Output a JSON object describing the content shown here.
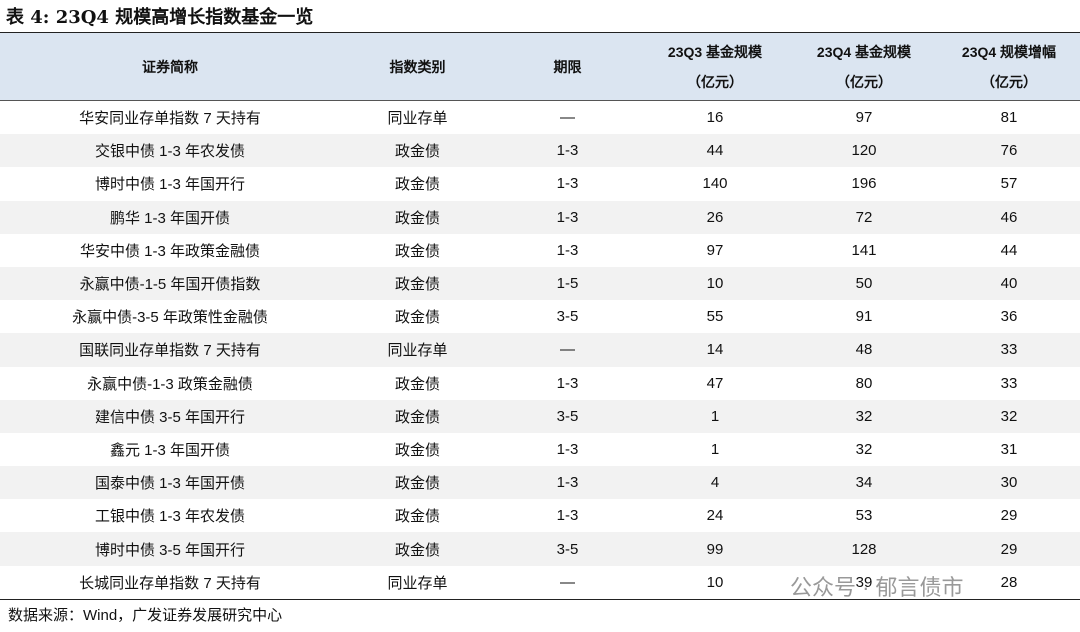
{
  "title": "表 4:  23Q4 规模高增长指数基金一览",
  "table": {
    "header": [
      [
        "证券简称"
      ],
      [
        "指数类别"
      ],
      [
        "期限"
      ],
      [
        "23Q3 基金规模",
        "（亿元）"
      ],
      [
        "23Q4 基金规模",
        "（亿元）"
      ],
      [
        "23Q4 规模增幅",
        "（亿元）"
      ]
    ],
    "rows": [
      [
        "华安同业存单指数 7 天持有",
        "同业存单",
        "—",
        16,
        97,
        81
      ],
      [
        "交银中债 1-3 年农发债",
        "政金债",
        "1-3",
        44,
        120,
        76
      ],
      [
        "博时中债 1-3 年国开行",
        "政金债",
        "1-3",
        140,
        196,
        57
      ],
      [
        "鹏华 1-3 年国开债",
        "政金债",
        "1-3",
        26,
        72,
        46
      ],
      [
        "华安中债 1-3 年政策金融债",
        "政金债",
        "1-3",
        97,
        141,
        44
      ],
      [
        "永赢中债-1-5 年国开债指数",
        "政金债",
        "1-5",
        10,
        50,
        40
      ],
      [
        "永赢中债-3-5 年政策性金融债",
        "政金债",
        "3-5",
        55,
        91,
        36
      ],
      [
        "国联同业存单指数 7 天持有",
        "同业存单",
        "—",
        14,
        48,
        33
      ],
      [
        "永赢中债-1-3 政策金融债",
        "政金债",
        "1-3",
        47,
        80,
        33
      ],
      [
        "建信中债 3-5 年国开行",
        "政金债",
        "3-5",
        1,
        32,
        32
      ],
      [
        "鑫元 1-3 年国开债",
        "政金债",
        "1-3",
        1,
        32,
        31
      ],
      [
        "国泰中债 1-3 年国开债",
        "政金债",
        "1-3",
        4,
        34,
        30
      ],
      [
        "工银中债 1-3 年农发债",
        "政金债",
        "1-3",
        24,
        53,
        29
      ],
      [
        "博时中债 3-5 年国开行",
        "政金债",
        "3-5",
        99,
        128,
        29
      ],
      [
        "长城同业存单指数 7 天持有",
        "同业存单",
        "—",
        10,
        39,
        28
      ]
    ]
  },
  "source": "数据来源：Wind，广发证券发展研究中心",
  "watermark": "公众号 · 郁言债市"
}
